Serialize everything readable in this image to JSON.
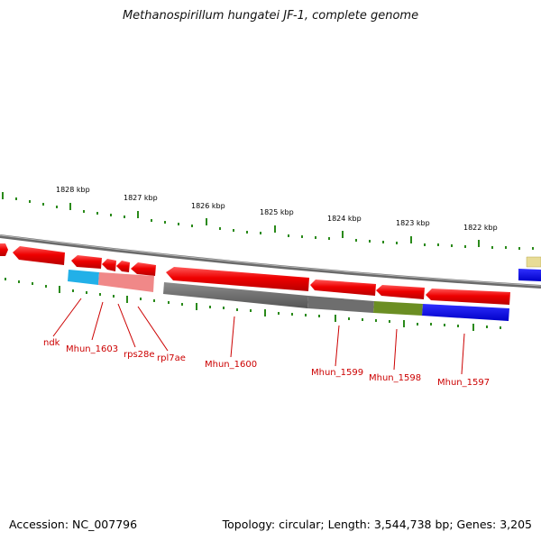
{
  "title": "Methanospirillum hungatei JF-1, complete genome",
  "footer": {
    "accession": "Accession: NC_007796",
    "summary": "Topology: circular; Length: 3,544,738 bp; Genes: 3,205"
  },
  "scale_labels": [
    "1828 kbp",
    "1827 kbp",
    "1826 kbp",
    "1825 kbp",
    "1824 kbp",
    "1823 kbp",
    "1822 kbp"
  ],
  "gene_labels": {
    "ndk": "ndk",
    "mhun1603": "Mhun_1603",
    "rps28e": "rps28e",
    "rpl7ae": "rpl7ae",
    "mhun1600": "Mhun_1600",
    "mhun1599": "Mhun_1599",
    "mhun1598": "Mhun_1598",
    "mhun1597": "Mhun_1597"
  },
  "colors": {
    "gene": "#ee0000",
    "backbone": "#888888",
    "tick": "#2a8a1a",
    "label": "#cc0000",
    "cog_cyan": "#22b0e8",
    "cog_pink": "#f08080",
    "cog_gray": "#6e6e6e",
    "cog_olive": "#6b8e23",
    "cog_blue": "#0000ee",
    "cog_yellow": "#e8dc96"
  }
}
